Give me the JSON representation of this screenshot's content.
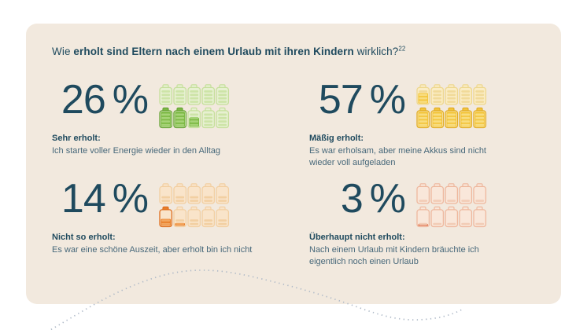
{
  "title": {
    "prefix": "Wie ",
    "bold": "erholt sind Eltern nach einem Urlaub mit ihren Kindern",
    "suffix": " wirklich?",
    "footnote": "22"
  },
  "colors": {
    "page_bg": "#ffffff",
    "card_bg": "#f2e9de",
    "heading_text": "#1f4a5e",
    "description_text": "#47687a",
    "dotted_wave": "#aeb9c7"
  },
  "stats": [
    {
      "id": "sehr-erholt",
      "value": "26",
      "unit": "%",
      "label": "Sehr erholt:",
      "description": "Ich starte voller Energie wieder in den Alltag",
      "batteries": {
        "total": 10,
        "per_row": 5,
        "active": 2.6,
        "charge": 1.0,
        "main": "#7cb944",
        "active_outline": "#67a335",
        "stripe_on_main": "#a6d377",
        "pale_fill": "#e7f0d1",
        "pale_stripe": "#cde4a7",
        "pale_outline": "#c6df9c"
      }
    },
    {
      "id": "maessig-erholt",
      "value": "57",
      "unit": "%",
      "label": "Mäßig erholt:",
      "description": "Es war erholsam, aber meine Akkus sind nicht wieder voll aufgeladen",
      "batteries": {
        "total": 10,
        "per_row": 5,
        "active": 5.7,
        "charge": 1.0,
        "main": "#f3c53d",
        "active_outline": "#e2ad24",
        "stripe_on_main": "#f8dd80",
        "pale_fill": "#faecc4",
        "pale_stripe": "#f1da99",
        "pale_outline": "#eed78e"
      }
    },
    {
      "id": "nicht-so-erholt",
      "value": "14",
      "unit": "%",
      "label": "Nicht so erholt:",
      "description": "Es war eine schöne Auszeit, aber erholt bin ich nicht",
      "batteries": {
        "total": 10,
        "per_row": 5,
        "active": 1.4,
        "charge": 0.45,
        "main": "#e87e2a",
        "active_outline": "#de6e1d",
        "stripe_on_main": "#f2a65f",
        "pale_fill": "#f9e4ca",
        "pale_stripe": "#f2cfa2",
        "pale_outline": "#f0c countries"
      }
    },
    {
      "id": "ueberhaupt-nicht-erholt",
      "value": "3",
      "unit": "%",
      "label": "Überhaupt nicht erholt:",
      "description": "Nach einem Urlaub mit Kindern bräuchte ich eigentlich noch einen Urlaub",
      "batteries": {
        "total": 10,
        "per_row": 5,
        "active": 0.3,
        "charge": 0.35,
        "main": "#d85126",
        "active_outline": "#cc4720",
        "stripe_on_main": "#e98a60",
        "pale_fill": "#f9e7da",
        "pale_stripe": "#f2ccb6",
        "pale_outline": "#eeb89e"
      }
    }
  ],
  "chart_data": {
    "type": "bar",
    "variant": "battery-pictogram",
    "categories": [
      "Sehr erholt",
      "Mäßig erholt",
      "Nicht so erholt",
      "Überhaupt nicht erholt"
    ],
    "values": [
      26,
      57,
      14,
      3
    ],
    "title": "Wie erholt sind Eltern nach einem Urlaub mit ihren Kindern wirklich?",
    "unit": "%",
    "pictogram_unit": "1 battery = 10%, 10 batteries per category",
    "legend_position": "none",
    "grid": false
  }
}
